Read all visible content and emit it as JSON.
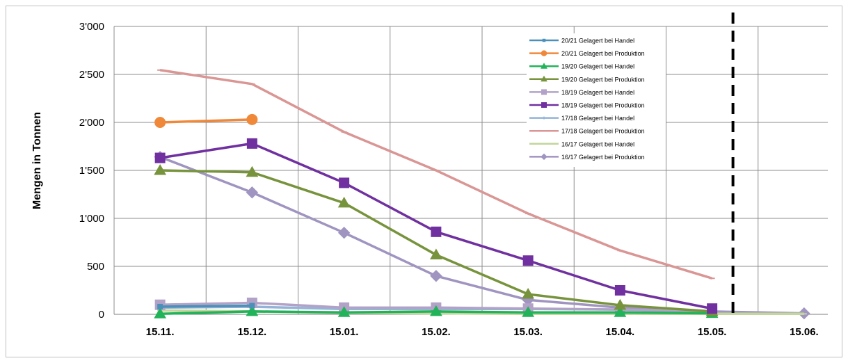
{
  "chart_data": {
    "type": "line",
    "title": "",
    "xlabel": "",
    "ylabel": "Mengen in Tonnen",
    "categories": [
      "15.11.",
      "15.12.",
      "15.01.",
      "15.02.",
      "15.03.",
      "15.04.",
      "15.05.",
      "15.06."
    ],
    "y_ticks": [
      "0",
      "500",
      "1'000",
      "1'500",
      "2'000",
      "2'500",
      "3'000"
    ],
    "ylim": [
      0,
      3000
    ],
    "grid": true,
    "legend_position": "top-right",
    "marker_line_after": "15.05.",
    "series": [
      {
        "name": "20/21 Gelagert bei Handel",
        "color": "#4a90b8",
        "marker": "small-square",
        "values": [
          80,
          90,
          null,
          null,
          null,
          null,
          null,
          null
        ]
      },
      {
        "name": "20/21 Gelagert bei Produktion",
        "color": "#f0883a",
        "marker": "circle",
        "values": [
          2000,
          2030,
          null,
          null,
          null,
          null,
          null,
          null
        ]
      },
      {
        "name": "19/20 Gelagert bei Handel",
        "color": "#22b35a",
        "marker": "triangle",
        "values": [
          5,
          30,
          20,
          30,
          20,
          20,
          10,
          null
        ]
      },
      {
        "name": "19/20 Gelagert bei Produktion",
        "color": "#77933c",
        "marker": "triangle",
        "values": [
          1500,
          1480,
          1160,
          620,
          210,
          95,
          30,
          null
        ]
      },
      {
        "name": "18/19 Gelagert bei Handel",
        "color": "#b3a2c7",
        "marker": "square",
        "values": [
          100,
          120,
          70,
          70,
          60,
          50,
          30,
          null
        ]
      },
      {
        "name": "18/19 Gelagert bei Produktion",
        "color": "#7030a0",
        "marker": "square",
        "values": [
          1630,
          1780,
          1370,
          860,
          560,
          250,
          60,
          null
        ]
      },
      {
        "name": "17/18 Gelagert bei Handel",
        "color": "#95b3d7",
        "marker": "plus",
        "values": [
          70,
          80,
          55,
          55,
          55,
          50,
          20,
          null
        ]
      },
      {
        "name": "17/18 Gelagert bei Produktion",
        "color": "#d99694",
        "marker": "dash",
        "values": [
          2545,
          2400,
          1900,
          1500,
          1050,
          665,
          375,
          null
        ]
      },
      {
        "name": "16/17 Gelagert bei Handel",
        "color": "#c3d69b",
        "marker": "dash",
        "values": [
          40,
          30,
          15,
          10,
          5,
          5,
          5,
          5
        ]
      },
      {
        "name": "16/17 Gelagert bei Produktion",
        "color": "#a094c0",
        "marker": "diamond",
        "values": [
          1640,
          1270,
          850,
          400,
          150,
          70,
          30,
          10
        ]
      }
    ]
  }
}
